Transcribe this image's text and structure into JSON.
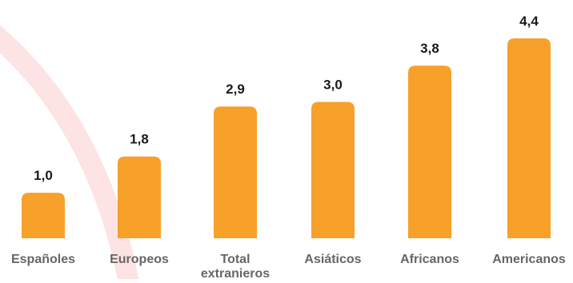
{
  "chart_data": {
    "type": "bar",
    "title": "",
    "xlabel": "",
    "ylabel": "",
    "categories": [
      [
        "Españoles"
      ],
      [
        "Europeos"
      ],
      [
        "Total",
        "extranieros"
      ],
      [
        "Asiáticos"
      ],
      [
        "Africanos"
      ],
      [
        "Americanos"
      ]
    ],
    "values": [
      1.0,
      1.8,
      2.9,
      3.0,
      3.8,
      4.4
    ],
    "value_labels": [
      "1,0",
      "1,8",
      "2,9",
      "3,0",
      "3,8",
      "4,4"
    ],
    "ylim": [
      0,
      4.4
    ],
    "grid": false,
    "legend": "none",
    "colors": {
      "bar": "#F7A02A",
      "background_arc": "#FDE3E3",
      "value_text": "#1a1a1a",
      "category_text": "#666666"
    }
  }
}
